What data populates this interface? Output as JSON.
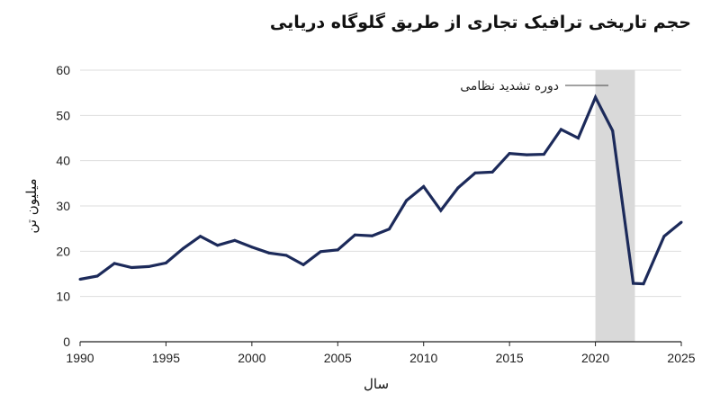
{
  "chart_data": {
    "type": "line",
    "title": "حجم تاریخی ترافیک تجاری از طریق گلوگاه دریایی",
    "xlabel": "سال",
    "ylabel": "میلیون تن",
    "xlim": [
      1990,
      2025
    ],
    "ylim": [
      0,
      60
    ],
    "xticks": [
      "1990",
      "1995",
      "2000",
      "2005",
      "2010",
      "2015",
      "2020",
      "2025"
    ],
    "yticks": [
      "0",
      "10",
      "20",
      "30",
      "40",
      "50",
      "60"
    ],
    "grid": "horizontal",
    "colors": {
      "line": "#1c2a5a",
      "shade": "#d9d9d9",
      "grid": "#dddddd"
    },
    "shaded_period": {
      "label": "دوره تشدید نظامی",
      "from": 2020,
      "to": 2022.3
    },
    "series": [
      {
        "x": [
          1990,
          1991,
          1992,
          1993,
          1994,
          1995,
          1996,
          1997,
          1998,
          1999,
          2000,
          2001,
          2002,
          2003,
          2004,
          2005,
          2006,
          2007,
          2008,
          2009,
          2010,
          2011,
          2012,
          2013,
          2014,
          2015,
          2016,
          2017,
          2018,
          2019,
          2020,
          2021,
          2022.2,
          2022.8,
          2024,
          2025
        ],
        "y": [
          13.8,
          14.5,
          17.3,
          16.4,
          16.6,
          17.4,
          20.6,
          23.3,
          21.3,
          22.4,
          20.9,
          19.6,
          19.1,
          17.0,
          19.9,
          20.3,
          23.6,
          23.4,
          24.9,
          31.2,
          34.3,
          29.0,
          34.0,
          37.3,
          37.5,
          41.6,
          41.3,
          41.4,
          46.9,
          45.0,
          54.0,
          46.6,
          12.9,
          12.8,
          23.3,
          26.4
        ]
      }
    ]
  }
}
